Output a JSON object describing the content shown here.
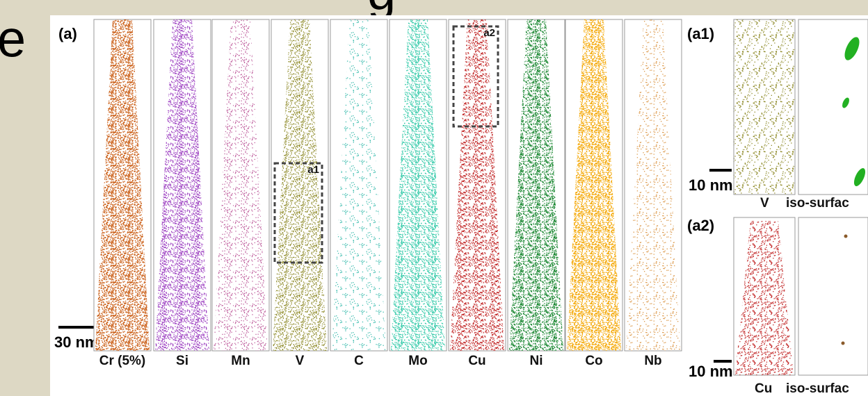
{
  "slide": {
    "title_fragment": "g",
    "side_fragment": "e"
  },
  "figure": {
    "panel_a": {
      "label": "(a)",
      "columns": [
        "Cr (5%)",
        "Si",
        "Mn",
        "V",
        "C",
        "Mo",
        "Cu",
        "Ni",
        "Co",
        "Nb"
      ],
      "rois": [
        "a1",
        "a2"
      ],
      "scale_bar": "30 nm"
    },
    "panel_a1": {
      "label": "(a1)",
      "scale_bar": "10 nm",
      "captions": [
        "V",
        "iso-surfac"
      ]
    },
    "panel_a2": {
      "label": "(a2)",
      "scale_bar": "10 nm",
      "captions": [
        "Cu",
        "iso-surfac"
      ]
    }
  }
}
